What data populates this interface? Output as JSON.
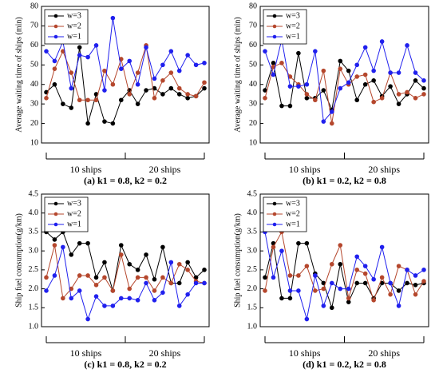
{
  "chart_data": [
    {
      "type": "line",
      "caption": "(a) k1 = 0.8, k2 = 0.2",
      "ylabel": "Average waiting time of ships (min)",
      "annotations": [
        "10 ships",
        "20 ships"
      ],
      "categories": [
        null,
        null,
        null,
        null,
        null,
        null,
        null,
        null,
        null,
        null,
        null,
        null,
        null,
        null,
        null,
        null,
        null,
        null,
        null,
        null
      ],
      "ylim": [
        10,
        80
      ],
      "yticks": [
        10,
        20,
        30,
        40,
        50,
        60,
        70,
        80
      ],
      "legend": "upper left",
      "series": [
        {
          "name": "w=3",
          "color": "#000000",
          "values": [
            36,
            40,
            30,
            28,
            59,
            20,
            35,
            21,
            20,
            32,
            37,
            30,
            37,
            38,
            35,
            38,
            35,
            33,
            34,
            38
          ]
        },
        {
          "name": "w=2",
          "color": "#b5472d",
          "values": [
            33,
            48,
            57,
            46,
            32,
            32,
            32,
            47,
            40,
            53,
            35,
            46,
            60,
            33,
            42,
            46,
            38,
            35,
            34,
            41
          ]
        },
        {
          "name": "w=1",
          "color": "#2020ee",
          "values": [
            57,
            52,
            62,
            38,
            55,
            54,
            60,
            37,
            74,
            48,
            52,
            40,
            59,
            43,
            50,
            57,
            47,
            55,
            50,
            51
          ]
        }
      ]
    },
    {
      "type": "line",
      "caption": "(b) k1 = 0.2, k2 = 0.8",
      "ylabel": "Average waiting time of ships (min)",
      "annotations": [
        "10 ships",
        "20 ships"
      ],
      "categories": [
        null,
        null,
        null,
        null,
        null,
        null,
        null,
        null,
        null,
        null,
        null,
        null,
        null,
        null,
        null,
        null,
        null,
        null,
        null,
        null
      ],
      "ylim": [
        10,
        80
      ],
      "yticks": [
        10,
        20,
        30,
        40,
        50,
        60,
        70,
        80
      ],
      "legend": "upper left",
      "series": [
        {
          "name": "w=3",
          "color": "#000000",
          "values": [
            37,
            51,
            29,
            29,
            56,
            33,
            33,
            37,
            27,
            52,
            47,
            32,
            40,
            42,
            34,
            39,
            30,
            35,
            42,
            38
          ]
        },
        {
          "name": "w=2",
          "color": "#b5472d",
          "values": [
            33,
            49,
            51,
            44,
            40,
            35,
            32,
            47,
            20,
            48,
            40,
            44,
            45,
            31,
            33,
            46,
            35,
            36,
            33,
            35
          ]
        },
        {
          "name": "w=1",
          "color": "#2020ee",
          "values": [
            57,
            45,
            63,
            39,
            39,
            40,
            57,
            21,
            26,
            38,
            41,
            50,
            59,
            47,
            62,
            46,
            46,
            60,
            46,
            42
          ]
        }
      ]
    },
    {
      "type": "line",
      "caption": "(c) k1 = 0.8, k2 = 0.2",
      "ylabel": "Ship fuel consumption(g/km)",
      "annotations": [
        "10 ships",
        "20 ships"
      ],
      "categories": [
        null,
        null,
        null,
        null,
        null,
        null,
        null,
        null,
        null,
        null,
        null,
        null,
        null,
        null,
        null,
        null,
        null,
        null,
        null,
        null
      ],
      "ylim": [
        1,
        4.5
      ],
      "yticks": [
        {
          "value": 1,
          "label": "1.0"
        },
        1.5,
        {
          "value": 2,
          "label": "2.0"
        },
        2.5,
        {
          "value": 3,
          "label": "3.0"
        },
        3.5,
        {
          "value": 4,
          "label": "4.0"
        },
        4.5
      ],
      "legend": "upper left",
      "series": [
        {
          "name": "w=3",
          "color": "#000000",
          "values": [
            3.5,
            3.3,
            3.5,
            2.9,
            3.2,
            3.2,
            2.3,
            2.7,
            1.95,
            3.15,
            2.65,
            2.5,
            2.9,
            2.25,
            3.1,
            2.15,
            2.15,
            2.7,
            2.3,
            2.5
          ]
        },
        {
          "name": "w=2",
          "color": "#b5472d",
          "values": [
            2.3,
            3.15,
            1.75,
            2.0,
            2.35,
            2.35,
            2.1,
            2.3,
            1.95,
            2.9,
            2.0,
            2.3,
            2.3,
            1.95,
            2.3,
            2.15,
            2.65,
            2.5,
            2.2,
            2.15
          ]
        },
        {
          "name": "w=1",
          "color": "#2020ee",
          "values": [
            1.95,
            2.35,
            3.1,
            1.75,
            1.95,
            1.2,
            1.8,
            1.55,
            1.55,
            1.75,
            1.75,
            1.7,
            2.15,
            1.7,
            1.9,
            2.7,
            1.55,
            1.85,
            2.15,
            2.15
          ]
        }
      ]
    },
    {
      "type": "line",
      "caption": "(d) k1 = 0.2, k2 = 0.8",
      "ylabel": "Ship fuel consumption(g/km)",
      "annotations": [
        "10 ships",
        "20 ships"
      ],
      "categories": [
        null,
        null,
        null,
        null,
        null,
        null,
        null,
        null,
        null,
        null,
        null,
        null,
        null,
        null,
        null,
        null,
        null,
        null,
        null,
        null
      ],
      "ylim": [
        1,
        4.5
      ],
      "yticks": [
        {
          "value": 1,
          "label": "1.0"
        },
        1.5,
        {
          "value": 2,
          "label": "2.0"
        },
        2.5,
        {
          "value": 3,
          "label": "3.0"
        },
        3.5,
        {
          "value": 4,
          "label": "4.0"
        },
        4.5
      ],
      "legend": "upper left",
      "series": [
        {
          "name": "w=3",
          "color": "#000000",
          "values": [
            2.3,
            3.2,
            1.75,
            1.75,
            3.2,
            3.2,
            2.4,
            2.15,
            1.5,
            2.65,
            1.65,
            2.15,
            2.15,
            1.75,
            2.15,
            2.15,
            1.95,
            2.15,
            2.1,
            2.15
          ]
        },
        {
          "name": "w=2",
          "color": "#b5472d",
          "values": [
            1.95,
            3.1,
            3.5,
            2.35,
            2.35,
            2.6,
            1.95,
            2.0,
            2.65,
            3.15,
            1.75,
            2.5,
            2.4,
            1.7,
            2.3,
            1.85,
            2.6,
            2.5,
            1.85,
            2.2
          ]
        },
        {
          "name": "w=1",
          "color": "#2020ee",
          "values": [
            3.5,
            2.3,
            3.0,
            1.95,
            1.95,
            1.2,
            2.35,
            1.55,
            2.15,
            2.0,
            2.0,
            2.85,
            2.6,
            2.25,
            3.1,
            2.15,
            1.55,
            2.5,
            2.35,
            2.5
          ]
        }
      ]
    }
  ]
}
